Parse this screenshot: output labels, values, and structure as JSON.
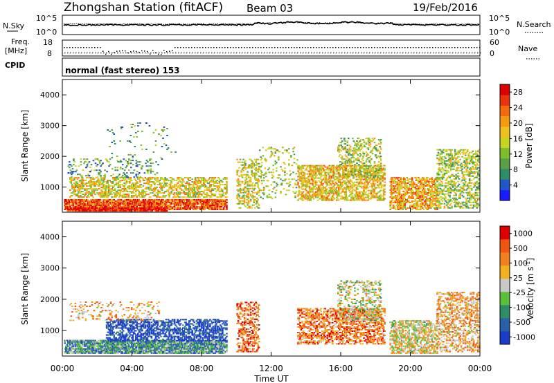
{
  "header": {
    "station": "Zhongshan Station (fitACF)",
    "beam": "Beam 03",
    "date": "19/Feb/2016"
  },
  "top_panels": {
    "nsky_label": "N.Sky",
    "nsky_ticks": [
      "10^5",
      "10^0"
    ],
    "nsearch_label": "N.Search",
    "nsearch_ticks": [
      "10^5",
      "10^0"
    ],
    "freq_label_1": "Freq.",
    "freq_label_2": "[MHz]",
    "freq_ticks": [
      "18",
      "8"
    ],
    "nave_label": "Nave",
    "nave_ticks": [
      "60",
      "0"
    ],
    "cpid_label": "CPID",
    "cpid_text": "normal (fast stereo) 153"
  },
  "chart_data": [
    {
      "type": "heatmap",
      "title": "",
      "xlabel": "Time UT",
      "ylabel": "Slant Range [km]",
      "xlim": [
        0,
        24
      ],
      "x_ticks": [
        "00:00",
        "04:00",
        "08:00",
        "12:00",
        "16:00",
        "20:00",
        "00:00"
      ],
      "ylim": [
        180,
        4500
      ],
      "y_ticks": [
        1000,
        2000,
        3000,
        4000
      ],
      "colorbar": {
        "label": "Power [dB]",
        "ticks": [
          4,
          8,
          12,
          16,
          20,
          24,
          28
        ],
        "range": [
          0,
          30
        ],
        "colors": [
          "#1a1aff",
          "#2255c8",
          "#2f8c66",
          "#5aa048",
          "#7cbf2a",
          "#c4d420",
          "#f0c020",
          "#f59a10",
          "#f26a0c",
          "#e83310",
          "#dd0000"
        ]
      },
      "scatter_regions": [
        {
          "t0": 0.1,
          "t1": 9.4,
          "r0": 250,
          "r1": 600,
          "level": 0.82,
          "density": 0.85
        },
        {
          "t0": 0.2,
          "t1": 6.0,
          "r0": 200,
          "r1": 320,
          "level": 0.95,
          "density": 0.9
        },
        {
          "t0": 0.4,
          "t1": 9.4,
          "r0": 650,
          "r1": 1300,
          "level": 0.55,
          "density": 0.45
        },
        {
          "t0": 0.3,
          "t1": 5.5,
          "r0": 1300,
          "r1": 1900,
          "level": 0.3,
          "density": 0.15
        },
        {
          "t0": 2.5,
          "t1": 6.5,
          "r0": 1800,
          "r1": 3100,
          "level": 0.3,
          "density": 0.03
        },
        {
          "t0": 10.0,
          "t1": 11.3,
          "r0": 300,
          "r1": 1900,
          "level": 0.5,
          "density": 0.35
        },
        {
          "t0": 11.3,
          "t1": 13.5,
          "r0": 600,
          "r1": 2300,
          "level": 0.45,
          "density": 0.12
        },
        {
          "t0": 13.5,
          "t1": 18.5,
          "r0": 550,
          "r1": 1700,
          "level": 0.6,
          "density": 0.5
        },
        {
          "t0": 15.8,
          "t1": 18.3,
          "r0": 1300,
          "r1": 2600,
          "level": 0.45,
          "density": 0.3
        },
        {
          "t0": 18.8,
          "t1": 21.5,
          "r0": 250,
          "r1": 1300,
          "level": 0.65,
          "density": 0.55
        },
        {
          "t0": 21.5,
          "t1": 23.9,
          "r0": 300,
          "r1": 2200,
          "level": 0.45,
          "density": 0.4
        }
      ]
    },
    {
      "type": "heatmap",
      "title": "",
      "xlabel": "Time UT",
      "ylabel": "Slant Range [km]",
      "xlim": [
        0,
        24
      ],
      "x_ticks": [
        "00:00",
        "04:00",
        "08:00",
        "12:00",
        "16:00",
        "20:00",
        "00:00"
      ],
      "ylim": [
        180,
        4500
      ],
      "y_ticks": [
        1000,
        2000,
        3000,
        4000
      ],
      "colorbar": {
        "label": "Velocity [m s^-1]",
        "ticks": [
          "1000",
          "500",
          "100",
          "25",
          "-25",
          "-100",
          "-500",
          "-1000"
        ],
        "colors": [
          "#1a3cc8",
          "#2a60a8",
          "#2f8c66",
          "#5cbf3a",
          "#c8c8c8",
          "#f0b020",
          "#f08020",
          "#ee5510",
          "#dd0000"
        ]
      },
      "scatter_regions": [
        {
          "t0": 0.1,
          "t1": 9.4,
          "r0": 250,
          "r1": 700,
          "level": 0.3,
          "density": 0.8
        },
        {
          "t0": 2.5,
          "t1": 9.4,
          "r0": 650,
          "r1": 1350,
          "level": 0.05,
          "density": 0.5
        },
        {
          "t0": 0.4,
          "t1": 5.5,
          "r0": 1300,
          "r1": 1900,
          "level": 0.65,
          "density": 0.15
        },
        {
          "t0": 10.0,
          "t1": 11.3,
          "r0": 300,
          "r1": 1900,
          "level": 0.8,
          "density": 0.35
        },
        {
          "t0": 13.5,
          "t1": 18.5,
          "r0": 550,
          "r1": 1700,
          "level": 0.75,
          "density": 0.5
        },
        {
          "t0": 15.8,
          "t1": 18.3,
          "r0": 1300,
          "r1": 2600,
          "level": 0.5,
          "density": 0.3
        },
        {
          "t0": 18.8,
          "t1": 21.5,
          "r0": 250,
          "r1": 1300,
          "level": 0.55,
          "density": 0.55
        },
        {
          "t0": 21.5,
          "t1": 23.9,
          "r0": 300,
          "r1": 2200,
          "level": 0.65,
          "density": 0.4
        }
      ]
    }
  ]
}
